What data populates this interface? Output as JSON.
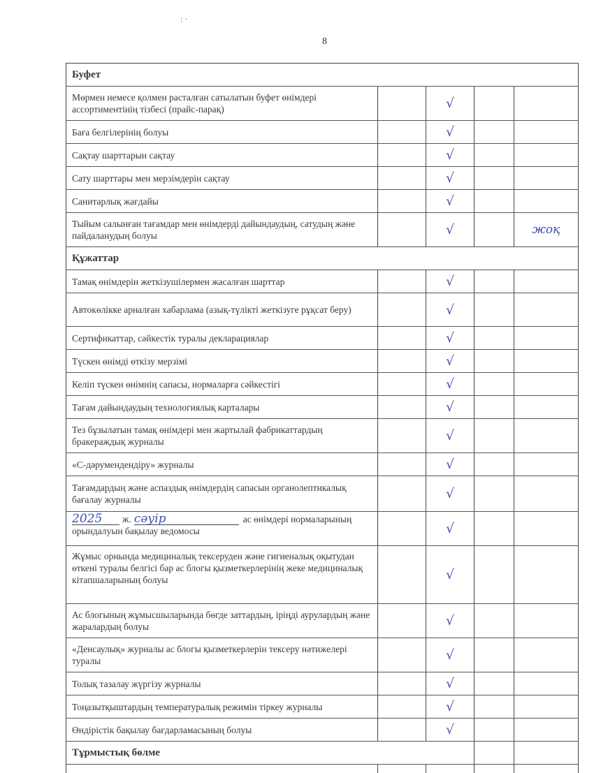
{
  "page_number": "8",
  "check_mark": "√",
  "colors": {
    "ink": "#4b55b8",
    "text": "#3a3a3a"
  },
  "sections": [
    {
      "title": "Буфет",
      "rows": [
        {
          "text": "Мөрмен немесе қолмен расталған сатылатын буфет өнімдері ассортиментінің тізбесі (прайс-парақ)",
          "checked_col": 2
        },
        {
          "text": "Баға белгілерінің болуы",
          "checked_col": 2
        },
        {
          "text": "Сақтау шарттарын сақтау",
          "checked_col": 2
        },
        {
          "text": "Сату шарттары мен мерзімдерін сақтау",
          "checked_col": 2
        },
        {
          "text": "Санитарлық жағдайы",
          "checked_col": 2
        },
        {
          "text": "Тыйым салынған тағамдар мен өнімдерді дайындаудың, сатудың және пайдаланудың болуы",
          "checked_col": 2,
          "note": "жоқ"
        }
      ]
    },
    {
      "title": "Құжаттар",
      "rows": [
        {
          "text": "Тамақ өнімдерін жеткізушілермен жасалған шарттар",
          "checked_col": 2
        },
        {
          "text": "Автокөлікке арналған хабарлама (азық-түлікті жеткізуге рұқсат беру)",
          "checked_col": 2
        },
        {
          "text": "Сертификаттар, сәйкестік туралы декларациялар",
          "checked_col": 2
        },
        {
          "text": "Түскен өнімді өткізу мерзімі",
          "checked_col": 2
        },
        {
          "text": "Келіп түскен өнімнің сапасы, нормаларға сәйкестігі",
          "checked_col": 2
        },
        {
          "text": "Тағам дайындаудың технологиялық карталары",
          "checked_col": 2
        },
        {
          "text": "Тез бұзылатын тамақ өнімдері мен жартылай фабрикаттардың бракераждық журналы",
          "checked_col": 2
        },
        {
          "text": "«С-дәрумендендіру» журналы",
          "checked_col": 2
        },
        {
          "text": "Тағамдардың және аспаздық өнімдердің сапасын органолептикалық бағалау журналы",
          "checked_col": 2
        },
        {
          "text": "ас өнімдері нормаларының орындалуын бақылау ведомосы",
          "checked_col": 2,
          "year": "2025",
          "year_suffix": "ж.",
          "month": "сәуір"
        },
        {
          "text": "Жұмыс орнында медициналық тексеруден және гигиеналық оқытудан өткені туралы белгісі бар ас блогы қызметкерлерінің жеке медициналық кітапшаларының болуы",
          "checked_col": 2
        },
        {
          "text": "Ас блогының жұмысшыларында бөгде заттардың, іріңді аурулардың және жаралардың болуы",
          "checked_col": 2
        },
        {
          "text": "«Денсаулық» журналы ас блогы қызметкерлерін тексеру нәтижелері туралы",
          "checked_col": 2
        },
        {
          "text": "Толық тазалау жүргізу журналы",
          "checked_col": 2
        },
        {
          "text": "Тоңазытқыштардың температуралық режимін тіркеу журналы",
          "checked_col": 2
        },
        {
          "text": "Өндірістік бақылау бағдарламасының болуы",
          "checked_col": 2
        }
      ]
    },
    {
      "title": "Тұрмыстық бөлме",
      "rows": []
    }
  ]
}
